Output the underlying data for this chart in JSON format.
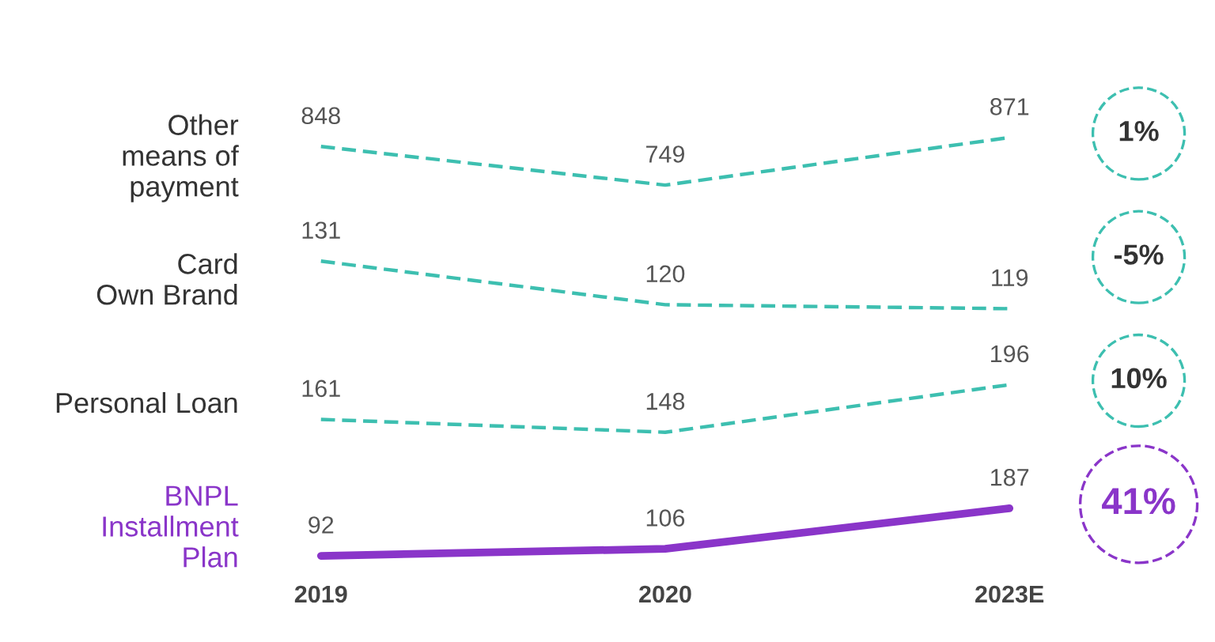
{
  "chart_data": [
    {
      "type": "line",
      "ylabel": "Other\nmeans of\npayment",
      "categories": [
        null,
        null,
        null
      ],
      "series": [
        {
          "color": "#3dbfb0",
          "values": [
            848,
            749,
            871
          ]
        }
      ],
      "line_style": "dashed",
      "data_labels": true,
      "tick_labels": false,
      "annotations": [
        "1%"
      ]
    },
    {
      "type": "line",
      "ylabel": "Card\nOwn Brand",
      "categories": [
        null,
        null,
        null
      ],
      "series": [
        {
          "color": "#3dbfb0",
          "values": [
            131,
            120,
            119
          ]
        }
      ],
      "line_style": "dashed",
      "data_labels": true,
      "tick_labels": false,
      "annotations": [
        "-5%"
      ]
    },
    {
      "type": "line",
      "ylabel": "Personal Loan",
      "categories": [
        null,
        null,
        null
      ],
      "series": [
        {
          "color": "#3dbfb0",
          "values": [
            161,
            148,
            196
          ]
        }
      ],
      "line_style": "dashed",
      "data_labels": true,
      "tick_labels": false,
      "annotations": [
        "10%"
      ]
    },
    {
      "type": "line",
      "ylabel": "BNPL\nInstallment\nPlan",
      "categories": [
        "2019",
        "2020",
        "2023E"
      ],
      "series": [
        {
          "color": "#8a35c9",
          "values": [
            92,
            106,
            187
          ]
        }
      ],
      "line_style": "solid",
      "data_labels": true,
      "tick_labels": "x",
      "annotations": [
        "41%"
      ]
    }
  ]
}
